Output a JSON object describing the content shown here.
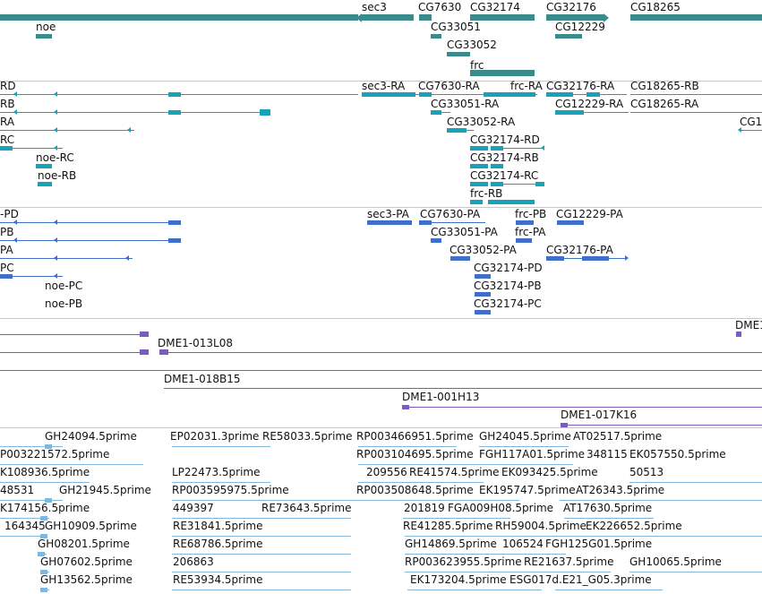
{
  "colors": {
    "gene": "#3a8c8c",
    "transcript": "#17a2b8",
    "protein": "#3f70c8",
    "clone": "#7a5cc0",
    "est": "#7fb8dc",
    "label": "#111111",
    "separator": "#c8c8c8"
  },
  "tracks": {
    "genes": {
      "labels": [
        "sec3",
        "CG7630",
        "CG32174",
        "CG32176",
        "CG18265",
        "noe",
        "CG33051",
        "CG12229",
        "CG33052",
        "frc"
      ]
    },
    "transcripts": {
      "labels": [
        "RD",
        "sec3-RA",
        "CG7630-RA",
        "frc-RA",
        "CG32176-RA",
        "CG18265-RB",
        "RB",
        "CG33051-RA",
        "CG12229-RA",
        "CG18265-RA",
        "RA",
        "CG33052-RA",
        "CG1",
        "RC",
        "CG32174-RD",
        "noe-RC",
        "CG32174-RB",
        "noe-RB",
        "CG32174-RC",
        "frc-RB"
      ]
    },
    "proteins": {
      "labels": [
        "-PD",
        "sec3-PA",
        "CG7630-PA",
        "frc-PB",
        "CG12229-PA",
        "PB",
        "CG33051-PA",
        "frc-PA",
        "PA",
        "CG33052-PA",
        "CG32176-PA",
        "PC",
        "CG32174-PD",
        "noe-PC",
        "CG32174-PB",
        "noe-PB",
        "CG32174-PC"
      ]
    },
    "clones": {
      "labels": [
        "DME1",
        "DME1-013L08",
        "DME1-018B15",
        "DME1-001H13",
        "DME1-017K16"
      ]
    },
    "ests": {
      "labels": [
        "GH24094.5prime",
        "EP02031.3prime",
        "RE58033.5prime",
        "RP003466951.5prime",
        "GH24045.5prime",
        "AT02517.5prime",
        "P003221572.5prime",
        "RP003104695.5prime",
        "FGH117A01.5prime",
        "348115",
        "EK057550.5prime",
        "K108936.5prime",
        "LP22473.5prime",
        "209556",
        "RE41574.5prime",
        "EK093425.5prime",
        "50513",
        "48531",
        "GH21945.5prime",
        "RP003595975.5prime",
        "RP003508648.5prime",
        "EK195747.5prime",
        "AT26343.5prime",
        "K174156.5prime",
        "449397",
        "RE73643.5prime",
        "201819",
        "FGA009H08.5prime",
        "AT17630.5prime",
        "164345",
        "GH10909.5prime",
        "RE31841.5prime",
        "RE41285.5prime",
        "RH59004.5prime",
        "EK226652.5prime",
        "GH08201.5prime",
        "RE68786.5prime",
        "GH14869.5prime",
        "106524",
        "FGH125G01.5prime",
        "GH07602.5prime",
        "206863",
        "RP003623955.5prime",
        "RE21637.5prime",
        "GH10065.5prime",
        "GH13562.5prime",
        "RE53934.5prime",
        "EK173204.5prime",
        "ESG017d.E21_G05.3prime"
      ]
    }
  }
}
